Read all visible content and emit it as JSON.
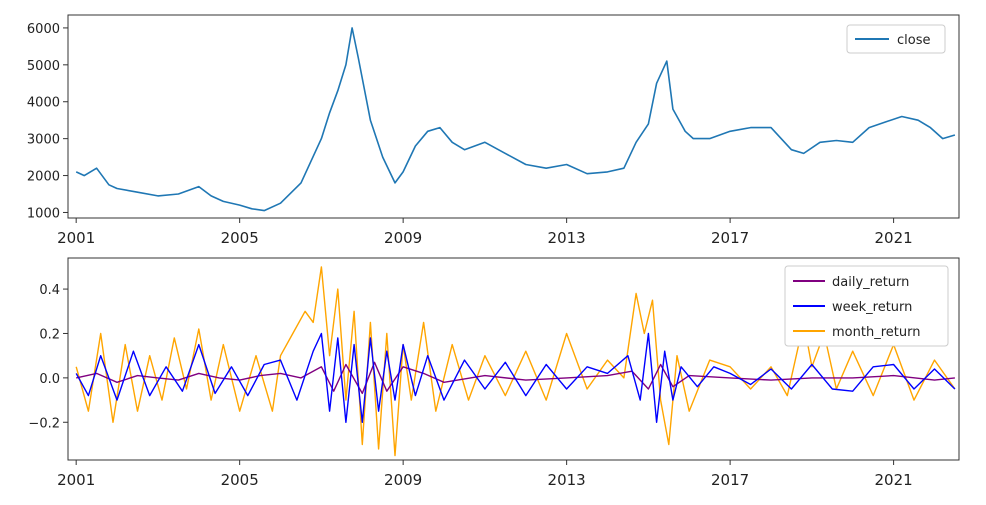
{
  "chart_data": [
    {
      "type": "line",
      "xlim": [
        2000.8,
        2022.6
      ],
      "ylim": [
        850,
        6350
      ],
      "xticks": [
        2001,
        2005,
        2009,
        2013,
        2017,
        2021
      ],
      "xtick_labels": [
        "2001",
        "2005",
        "2009",
        "2013",
        "2017",
        "2021"
      ],
      "yticks": [
        1000,
        2000,
        3000,
        4000,
        5000,
        6000
      ],
      "ytick_labels": [
        "1000",
        "2000",
        "3000",
        "4000",
        "5000",
        "6000"
      ],
      "grid": false,
      "legend_position": "top-right",
      "series": [
        {
          "name": "close",
          "color": "#1f77b4",
          "x": [
            2001.0,
            2001.2,
            2001.5,
            2001.8,
            2002.0,
            2002.5,
            2003.0,
            2003.5,
            2004.0,
            2004.3,
            2004.6,
            2005.0,
            2005.3,
            2005.6,
            2006.0,
            2006.5,
            2007.0,
            2007.2,
            2007.4,
            2007.6,
            2007.75,
            2007.9,
            2008.2,
            2008.5,
            2008.8,
            2009.0,
            2009.3,
            2009.6,
            2009.9,
            2010.2,
            2010.5,
            2011.0,
            2011.5,
            2012.0,
            2012.5,
            2013.0,
            2013.5,
            2014.0,
            2014.4,
            2014.7,
            2015.0,
            2015.2,
            2015.45,
            2015.6,
            2015.9,
            2016.1,
            2016.5,
            2017.0,
            2017.5,
            2018.0,
            2018.5,
            2018.8,
            2019.2,
            2019.6,
            2020.0,
            2020.4,
            2020.8,
            2021.2,
            2021.6,
            2021.9,
            2022.2,
            2022.5
          ],
          "y": [
            2100,
            2000,
            2200,
            1750,
            1650,
            1550,
            1450,
            1500,
            1700,
            1450,
            1300,
            1200,
            1100,
            1050,
            1250,
            1800,
            3000,
            3700,
            4300,
            5000,
            6000,
            5200,
            3500,
            2500,
            1800,
            2100,
            2800,
            3200,
            3300,
            2900,
            2700,
            2900,
            2600,
            2300,
            2200,
            2300,
            2050,
            2100,
            2200,
            2900,
            3400,
            4500,
            5100,
            3800,
            3200,
            3000,
            3000,
            3200,
            3300,
            3300,
            2700,
            2600,
            2900,
            2950,
            2900,
            3300,
            3450,
            3600,
            3500,
            3300,
            3000,
            3100
          ]
        }
      ]
    },
    {
      "type": "line",
      "xlim": [
        2000.8,
        2022.6
      ],
      "ylim": [
        -0.37,
        0.54
      ],
      "xticks": [
        2001,
        2005,
        2009,
        2013,
        2017,
        2021
      ],
      "xtick_labels": [
        "2001",
        "2005",
        "2009",
        "2013",
        "2017",
        "2021"
      ],
      "yticks": [
        -0.2,
        0.0,
        0.2,
        0.4
      ],
      "ytick_labels": [
        "−0.2",
        "0.0",
        "0.2",
        "0.4"
      ],
      "grid": false,
      "legend_position": "top-right",
      "series": [
        {
          "name": "daily_return",
          "color": "#800080",
          "x": [
            2001.0,
            2001.5,
            2002.0,
            2002.5,
            2003.0,
            2003.5,
            2004.0,
            2004.5,
            2005.0,
            2005.5,
            2006.0,
            2006.5,
            2007.0,
            2007.3,
            2007.6,
            2008.0,
            2008.3,
            2008.6,
            2009.0,
            2009.5,
            2010.0,
            2011.0,
            2012.0,
            2013.0,
            2014.0,
            2014.6,
            2015.0,
            2015.3,
            2015.6,
            2016.0,
            2017.0,
            2018.0,
            2019.0,
            2020.0,
            2021.0,
            2022.0,
            2022.5
          ],
          "y": [
            0.0,
            0.02,
            -0.02,
            0.01,
            0.0,
            -0.01,
            0.02,
            0.0,
            -0.01,
            0.01,
            0.02,
            0.0,
            0.05,
            -0.06,
            0.06,
            -0.07,
            0.07,
            -0.06,
            0.05,
            0.02,
            -0.02,
            0.01,
            -0.01,
            0.0,
            0.01,
            0.03,
            -0.05,
            0.06,
            -0.04,
            0.01,
            0.0,
            -0.01,
            0.0,
            0.0,
            0.01,
            -0.01,
            0.0
          ]
        },
        {
          "name": "week_return",
          "color": "#0000ff",
          "x": [
            2001.0,
            2001.3,
            2001.6,
            2002.0,
            2002.4,
            2002.8,
            2003.2,
            2003.6,
            2004.0,
            2004.4,
            2004.8,
            2005.2,
            2005.6,
            2006.0,
            2006.4,
            2006.8,
            2007.0,
            2007.2,
            2007.4,
            2007.6,
            2007.8,
            2008.0,
            2008.2,
            2008.4,
            2008.6,
            2008.8,
            2009.0,
            2009.3,
            2009.6,
            2010.0,
            2010.5,
            2011.0,
            2011.5,
            2012.0,
            2012.5,
            2013.0,
            2013.5,
            2014.0,
            2014.5,
            2014.8,
            2015.0,
            2015.2,
            2015.4,
            2015.6,
            2015.8,
            2016.2,
            2016.6,
            2017.0,
            2017.5,
            2018.0,
            2018.5,
            2019.0,
            2019.5,
            2020.0,
            2020.5,
            2021.0,
            2021.5,
            2022.0,
            2022.5
          ],
          "y": [
            0.02,
            -0.08,
            0.1,
            -0.1,
            0.12,
            -0.08,
            0.05,
            -0.06,
            0.15,
            -0.07,
            0.05,
            -0.08,
            0.06,
            0.08,
            -0.1,
            0.12,
            0.2,
            -0.15,
            0.18,
            -0.2,
            0.15,
            -0.2,
            0.18,
            -0.15,
            0.12,
            -0.1,
            0.15,
            -0.08,
            0.1,
            -0.1,
            0.08,
            -0.05,
            0.07,
            -0.08,
            0.06,
            -0.05,
            0.05,
            0.02,
            0.1,
            -0.1,
            0.2,
            -0.2,
            0.12,
            -0.1,
            0.05,
            -0.04,
            0.05,
            0.02,
            -0.03,
            0.04,
            -0.05,
            0.06,
            -0.05,
            -0.06,
            0.05,
            0.06,
            -0.05,
            0.04,
            -0.05
          ]
        },
        {
          "name": "month_return",
          "color": "#ffa500",
          "x": [
            2001.0,
            2001.3,
            2001.6,
            2001.9,
            2002.2,
            2002.5,
            2002.8,
            2003.1,
            2003.4,
            2003.7,
            2004.0,
            2004.3,
            2004.6,
            2005.0,
            2005.4,
            2005.8,
            2006.0,
            2006.3,
            2006.6,
            2006.8,
            2007.0,
            2007.2,
            2007.4,
            2007.6,
            2007.8,
            2008.0,
            2008.2,
            2008.4,
            2008.6,
            2008.8,
            2009.0,
            2009.2,
            2009.5,
            2009.8,
            2010.2,
            2010.6,
            2011.0,
            2011.5,
            2012.0,
            2012.5,
            2013.0,
            2013.5,
            2014.0,
            2014.4,
            2014.7,
            2014.9,
            2015.1,
            2015.3,
            2015.5,
            2015.7,
            2016.0,
            2016.5,
            2017.0,
            2017.5,
            2018.0,
            2018.4,
            2018.8,
            2019.0,
            2019.3,
            2019.6,
            2020.0,
            2020.5,
            2021.0,
            2021.5,
            2022.0,
            2022.5
          ],
          "y": [
            0.05,
            -0.15,
            0.2,
            -0.2,
            0.15,
            -0.15,
            0.1,
            -0.1,
            0.18,
            -0.05,
            0.22,
            -0.1,
            0.15,
            -0.15,
            0.1,
            -0.15,
            0.1,
            0.2,
            0.3,
            0.25,
            0.5,
            0.1,
            0.4,
            -0.1,
            0.3,
            -0.3,
            0.25,
            -0.32,
            0.2,
            -0.35,
            0.15,
            -0.1,
            0.25,
            -0.15,
            0.15,
            -0.1,
            0.1,
            -0.08,
            0.12,
            -0.1,
            0.2,
            -0.05,
            0.08,
            0.0,
            0.38,
            0.2,
            0.35,
            -0.1,
            -0.3,
            0.1,
            -0.15,
            0.08,
            0.05,
            -0.05,
            0.05,
            -0.08,
            0.25,
            0.05,
            0.2,
            -0.05,
            0.12,
            -0.08,
            0.15,
            -0.1,
            0.08,
            -0.05
          ]
        }
      ]
    }
  ]
}
